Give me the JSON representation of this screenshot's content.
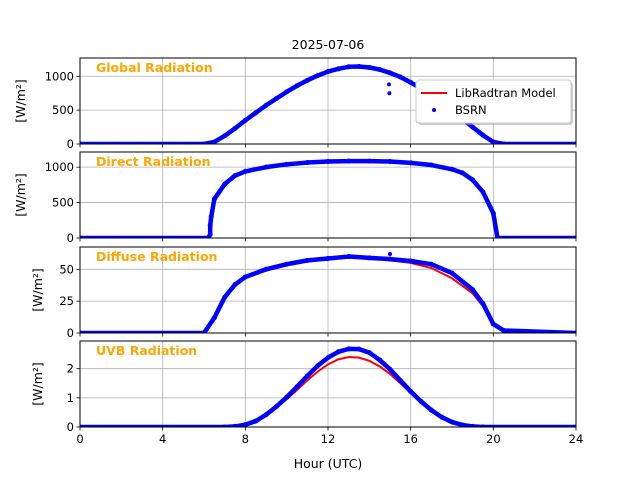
{
  "chart_data": {
    "type": "line",
    "title": "2025-07-06",
    "xlabel": "Hour (UTC)",
    "xlim": [
      0,
      24
    ],
    "xticks": [
      0,
      4,
      8,
      12,
      16,
      20,
      24
    ],
    "legend": {
      "placement": "upper-right of first panel",
      "entries": [
        "LibRadtran Model",
        "BSRN"
      ]
    },
    "colors": {
      "model": "#ff0000",
      "bsrn": "#0000ff",
      "panel_title": "#ffa500"
    },
    "panels": [
      {
        "title": "Global Radiation",
        "ylabel": "[W/m²]",
        "ylim": [
          0,
          1270
        ],
        "yticks": [
          0,
          500,
          1000
        ],
        "model": [
          [
            0,
            0
          ],
          [
            6,
            0
          ],
          [
            6.5,
            30
          ],
          [
            7,
            120
          ],
          [
            7.5,
            230
          ],
          [
            8,
            350
          ],
          [
            8.5,
            460
          ],
          [
            9,
            570
          ],
          [
            9.5,
            670
          ],
          [
            10,
            770
          ],
          [
            10.5,
            860
          ],
          [
            11,
            940
          ],
          [
            11.5,
            1010
          ],
          [
            12,
            1070
          ],
          [
            12.5,
            1110
          ],
          [
            13,
            1140
          ],
          [
            13.5,
            1145
          ],
          [
            14,
            1130
          ],
          [
            14.5,
            1100
          ],
          [
            15,
            1050
          ],
          [
            15.5,
            990
          ],
          [
            16,
            910
          ],
          [
            16.5,
            820
          ],
          [
            17,
            720
          ],
          [
            17.5,
            610
          ],
          [
            18,
            490
          ],
          [
            18.5,
            370
          ],
          [
            19,
            250
          ],
          [
            19.5,
            130
          ],
          [
            20,
            30
          ],
          [
            20.5,
            0
          ],
          [
            24,
            0
          ]
        ],
        "bsrn": [
          [
            0,
            0
          ],
          [
            6,
            0
          ],
          [
            6.5,
            30
          ],
          [
            7,
            120
          ],
          [
            7.5,
            230
          ],
          [
            8,
            350
          ],
          [
            8.5,
            460
          ],
          [
            9,
            570
          ],
          [
            9.5,
            670
          ],
          [
            10,
            770
          ],
          [
            10.5,
            860
          ],
          [
            11,
            940
          ],
          [
            11.5,
            1010
          ],
          [
            12,
            1070
          ],
          [
            12.5,
            1110
          ],
          [
            13,
            1140
          ],
          [
            13.5,
            1145
          ],
          [
            14,
            1130
          ],
          [
            14.5,
            1100
          ],
          [
            15,
            1050
          ],
          [
            15.5,
            990
          ],
          [
            16,
            910
          ],
          [
            16.5,
            820
          ],
          [
            17,
            720
          ],
          [
            17.5,
            610
          ],
          [
            18,
            490
          ],
          [
            18.5,
            370
          ],
          [
            19,
            250
          ],
          [
            19.5,
            130
          ],
          [
            20,
            30
          ],
          [
            20.5,
            0
          ],
          [
            24,
            0
          ]
        ],
        "outliers": [
          [
            14.95,
            880
          ],
          [
            14.97,
            750
          ]
        ]
      },
      {
        "title": "Direct Radiation",
        "ylabel": "[W/m²]",
        "ylim": [
          0,
          1214
        ],
        "yticks": [
          0,
          500,
          1000
        ],
        "model": [
          [
            6.3,
            300
          ],
          [
            6.5,
            550
          ],
          [
            7,
            760
          ],
          [
            7.5,
            880
          ],
          [
            8,
            940
          ],
          [
            9,
            1000
          ],
          [
            10,
            1040
          ],
          [
            11,
            1065
          ],
          [
            12,
            1080
          ],
          [
            13,
            1085
          ],
          [
            14,
            1085
          ],
          [
            15,
            1080
          ],
          [
            16,
            1060
          ],
          [
            17,
            1030
          ],
          [
            18,
            970
          ],
          [
            18.5,
            920
          ],
          [
            19,
            820
          ],
          [
            19.5,
            650
          ],
          [
            20,
            350
          ],
          [
            20.2,
            0
          ]
        ],
        "bsrn": [
          [
            0,
            0
          ],
          [
            6.2,
            0
          ],
          [
            6.3,
            50
          ],
          [
            6.3,
            180
          ],
          [
            6.35,
            300
          ],
          [
            6.5,
            550
          ],
          [
            7,
            760
          ],
          [
            7.5,
            880
          ],
          [
            8,
            940
          ],
          [
            9,
            1000
          ],
          [
            10,
            1040
          ],
          [
            11,
            1065
          ],
          [
            12,
            1080
          ],
          [
            13,
            1085
          ],
          [
            14,
            1085
          ],
          [
            15,
            1080
          ],
          [
            16,
            1060
          ],
          [
            17,
            1030
          ],
          [
            18,
            970
          ],
          [
            18.5,
            920
          ],
          [
            19,
            820
          ],
          [
            19.5,
            650
          ],
          [
            20,
            350
          ],
          [
            20.2,
            0
          ],
          [
            24,
            0
          ]
        ],
        "outliers": []
      },
      {
        "title": "Diffuse Radiation",
        "ylabel": "[W/m²]",
        "ylim": [
          0,
          67.5
        ],
        "yticks": [
          0,
          25,
          50
        ],
        "model": [
          [
            0,
            0
          ],
          [
            6,
            0
          ],
          [
            6.5,
            12
          ],
          [
            7,
            28
          ],
          [
            7.5,
            37
          ],
          [
            8,
            43
          ],
          [
            9,
            49
          ],
          [
            10,
            53
          ],
          [
            11,
            56
          ],
          [
            12,
            58
          ],
          [
            13,
            59.5
          ],
          [
            14,
            58.5
          ],
          [
            15,
            57
          ],
          [
            16,
            55
          ],
          [
            17,
            51
          ],
          [
            18,
            43
          ],
          [
            19,
            31
          ],
          [
            19.5,
            21
          ],
          [
            20,
            6
          ],
          [
            20.5,
            1
          ],
          [
            24,
            0
          ]
        ],
        "bsrn": [
          [
            0,
            0
          ],
          [
            6,
            0
          ],
          [
            6.5,
            12
          ],
          [
            7,
            28
          ],
          [
            7.5,
            38
          ],
          [
            8,
            44
          ],
          [
            9,
            50
          ],
          [
            10,
            54
          ],
          [
            11,
            57
          ],
          [
            12,
            58.5
          ],
          [
            13,
            60
          ],
          [
            14,
            59
          ],
          [
            15,
            58
          ],
          [
            16,
            56.5
          ],
          [
            17,
            54
          ],
          [
            18,
            47
          ],
          [
            19,
            34
          ],
          [
            19.5,
            23
          ],
          [
            20,
            7
          ],
          [
            20.5,
            2
          ],
          [
            24,
            0
          ]
        ],
        "outliers": [
          [
            15,
            62
          ]
        ]
      },
      {
        "title": "UVB Radiation",
        "ylabel": "[W/m²]",
        "ylim": [
          0,
          2.95
        ],
        "yticks": [
          0,
          1,
          2
        ],
        "model": [
          [
            0,
            0
          ],
          [
            7,
            0
          ],
          [
            7.5,
            0.02
          ],
          [
            8,
            0.08
          ],
          [
            8.5,
            0.2
          ],
          [
            9,
            0.4
          ],
          [
            9.5,
            0.65
          ],
          [
            10,
            0.95
          ],
          [
            10.5,
            1.27
          ],
          [
            11,
            1.6
          ],
          [
            11.5,
            1.9
          ],
          [
            12,
            2.15
          ],
          [
            12.5,
            2.32
          ],
          [
            13,
            2.4
          ],
          [
            13.5,
            2.38
          ],
          [
            14,
            2.27
          ],
          [
            14.5,
            2.08
          ],
          [
            15,
            1.82
          ],
          [
            15.5,
            1.5
          ],
          [
            16,
            1.17
          ],
          [
            16.5,
            0.85
          ],
          [
            17,
            0.57
          ],
          [
            17.5,
            0.34
          ],
          [
            18,
            0.17
          ],
          [
            18.5,
            0.07
          ],
          [
            19,
            0.02
          ],
          [
            19.5,
            0
          ],
          [
            24,
            0
          ]
        ],
        "bsrn": [
          [
            0,
            0
          ],
          [
            7,
            0
          ],
          [
            7.5,
            0.02
          ],
          [
            8,
            0.08
          ],
          [
            8.5,
            0.2
          ],
          [
            9,
            0.42
          ],
          [
            9.5,
            0.7
          ],
          [
            10,
            1.02
          ],
          [
            10.5,
            1.38
          ],
          [
            11,
            1.75
          ],
          [
            11.5,
            2.1
          ],
          [
            12,
            2.38
          ],
          [
            12.5,
            2.58
          ],
          [
            13,
            2.68
          ],
          [
            13.5,
            2.67
          ],
          [
            14,
            2.55
          ],
          [
            14.5,
            2.3
          ],
          [
            15,
            1.98
          ],
          [
            15.5,
            1.6
          ],
          [
            16,
            1.22
          ],
          [
            16.5,
            0.88
          ],
          [
            17,
            0.58
          ],
          [
            17.5,
            0.34
          ],
          [
            18,
            0.17
          ],
          [
            18.5,
            0.07
          ],
          [
            19,
            0.02
          ],
          [
            19.5,
            0
          ],
          [
            24,
            0
          ]
        ],
        "outliers": []
      }
    ]
  }
}
